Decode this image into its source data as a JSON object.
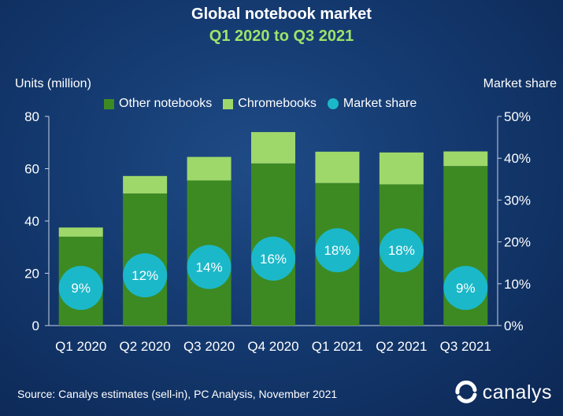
{
  "chart_data": {
    "type": "bar",
    "title": "Global notebook market",
    "subtitle": "Q1 2020 to Q3 2021",
    "ylabel": "Units (million)",
    "y2label": "Market share",
    "ylim": [
      0,
      80
    ],
    "y_ticks": [
      "0",
      "20",
      "40",
      "60",
      "80"
    ],
    "y2lim": [
      0,
      50
    ],
    "y2_ticks": [
      "0%",
      "10%",
      "20%",
      "30%",
      "40%",
      "50%"
    ],
    "categories": [
      "Q1 2020",
      "Q2 2020",
      "Q3 2020",
      "Q4 2020",
      "Q1 2021",
      "Q2 2021",
      "Q3 2021"
    ],
    "stacked": true,
    "series": [
      {
        "name": "Other notebooks",
        "values": [
          34,
          50.5,
          55.5,
          62,
          54.5,
          54,
          61
        ],
        "color": "#3d8a22"
      },
      {
        "name": "Chromebooks",
        "values": [
          3.5,
          6.7,
          9,
          12,
          12,
          12.2,
          5.6
        ],
        "color": "#9ed86a"
      }
    ],
    "market_share": {
      "name": "Market share",
      "values": [
        9,
        12,
        14,
        16,
        18,
        18,
        9
      ],
      "labels": [
        "9%",
        "12%",
        "14%",
        "16%",
        "18%",
        "18%",
        "9%"
      ],
      "color": "#1bb8c9"
    },
    "legend_position": "top"
  },
  "source_text": "Source: Canalys estimates (sell-in), PC Analysis, November 2021",
  "brand": {
    "name": "canalys",
    "icon": "canalys-logo-icon"
  }
}
